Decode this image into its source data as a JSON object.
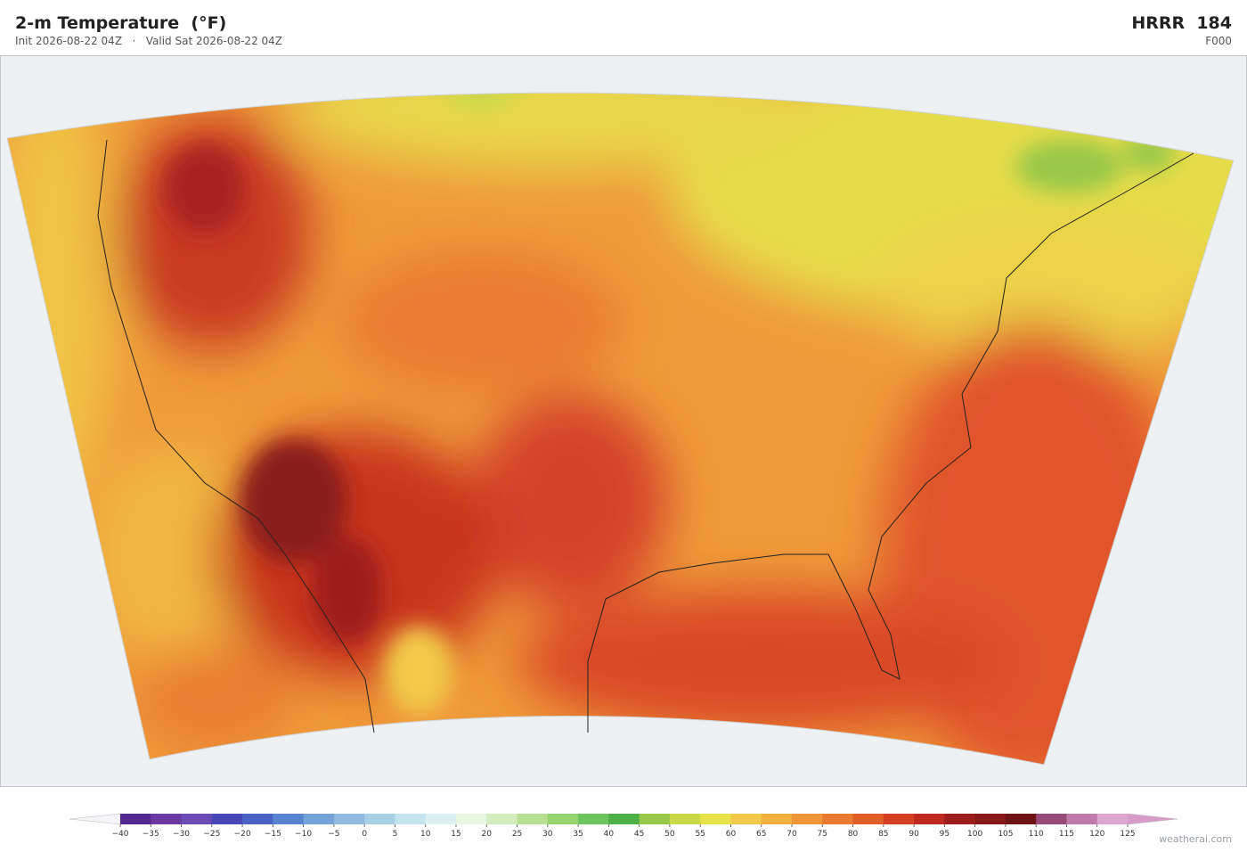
{
  "header": {
    "title": "2-m Temperature  (°F)",
    "subtitle": "Init 2026-08-22 04Z   ·   Valid Sat 2026-08-22 04Z",
    "model": "HRRR  184",
    "forecast_hour": "F000"
  },
  "colorbar": {
    "ticks": [
      {
        "value": -40,
        "label": "−40"
      },
      {
        "value": -35,
        "label": "−35"
      },
      {
        "value": -30,
        "label": "−30"
      },
      {
        "value": -25,
        "label": "−25"
      },
      {
        "value": -20,
        "label": "−20"
      },
      {
        "value": -15,
        "label": "−15"
      },
      {
        "value": -10,
        "label": "−10"
      },
      {
        "value": -5,
        "label": "−5"
      },
      0,
      5,
      10,
      15,
      20,
      25,
      30,
      35,
      40,
      45,
      50,
      55,
      60,
      65,
      70,
      75,
      80,
      85,
      90,
      95,
      100,
      105,
      110,
      115,
      120,
      125
    ],
    "colors": [
      "#55288f",
      "#6a3aa0",
      "#6a4ab4",
      "#4747b8",
      "#4a62c4",
      "#5a84cf",
      "#75a2d8",
      "#90badf",
      "#a9d0e6",
      "#c2e4ee",
      "#dbf1f2",
      "#e8f6e4",
      "#d4ecbe",
      "#b8e092",
      "#95d46e",
      "#6cc45c",
      "#4caf48",
      "#98c84a",
      "#cad948",
      "#e8e24a",
      "#f2c94a",
      "#f2b040",
      "#ef9638",
      "#e87b30",
      "#e05f28",
      "#d43e22",
      "#bf2a20",
      "#9e1e1e",
      "#861818",
      "#6e1414",
      "#9a4a78",
      "#c07aac",
      "#dca6d0"
    ],
    "extend_colors": [
      "#f4f4f8",
      "#d89ac8"
    ]
  },
  "footer": {
    "credit": "weatherai.com"
  }
}
